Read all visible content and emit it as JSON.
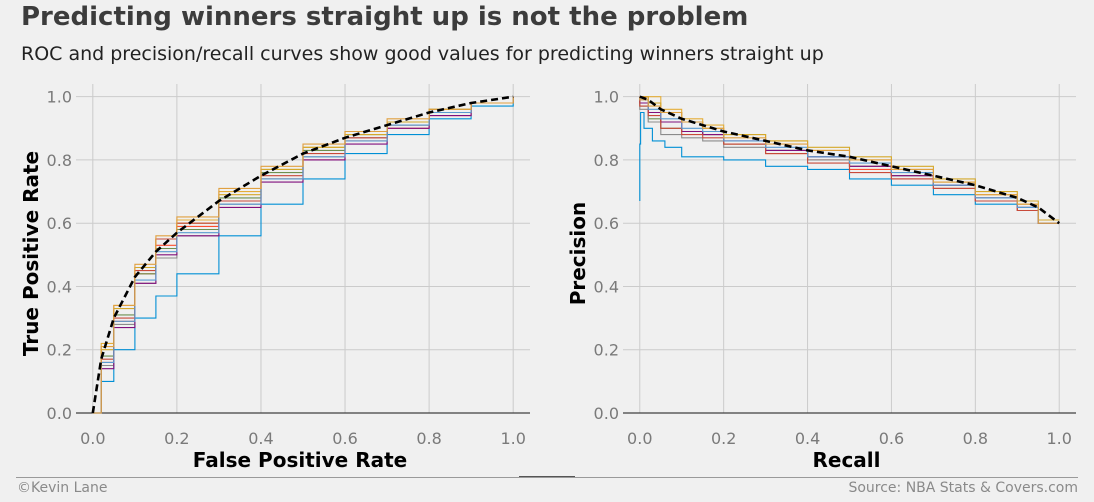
{
  "header": {
    "title": "Predicting winners straight up is not the problem",
    "subtitle": "ROC and precision/recall curves show good values for predicting winners straight up"
  },
  "footer": {
    "credit": "©Kevin Lane",
    "source": "Source: NBA Stats & Covers.com"
  },
  "style": {
    "background": "#f0f0f0",
    "grid_color": "#cbcbcb",
    "mean_curve_color": "#000000",
    "series_colors": [
      "#008fd5",
      "#fc4f30",
      "#e5ae38",
      "#6d904f",
      "#8b8b8b",
      "#810f7c",
      "#d4a82a",
      "#c84a3a",
      "#5a9ad0",
      "#e0a040"
    ]
  },
  "chart_data": [
    {
      "type": "line",
      "name": "roc",
      "xlabel": "False Positive Rate",
      "ylabel": "True Positive Rate",
      "xlim": [
        -0.04,
        1.04
      ],
      "ylim": [
        0.0,
        1.04
      ],
      "xticks": [
        "0.0",
        "0.2",
        "0.4",
        "0.6",
        "0.8",
        "1.0"
      ],
      "yticks": [
        "0.0",
        "0.2",
        "0.4",
        "0.6",
        "0.8",
        "1.0"
      ],
      "grid": true,
      "mean": {
        "style": "dashed",
        "x": [
          0,
          0.02,
          0.05,
          0.1,
          0.15,
          0.2,
          0.3,
          0.4,
          0.5,
          0.6,
          0.7,
          0.8,
          0.9,
          1.0
        ],
        "y": [
          0,
          0.17,
          0.3,
          0.43,
          0.51,
          0.57,
          0.67,
          0.75,
          0.82,
          0.87,
          0.91,
          0.95,
          0.98,
          1.0
        ]
      },
      "series": [
        {
          "x": [
            0,
            0.02,
            0.05,
            0.1,
            0.15,
            0.2,
            0.3,
            0.4,
            0.5,
            0.6,
            0.7,
            0.8,
            0.9,
            1.0
          ],
          "y": [
            0,
            0.1,
            0.2,
            0.3,
            0.37,
            0.44,
            0.56,
            0.66,
            0.74,
            0.82,
            0.88,
            0.93,
            0.97,
            1.0
          ]
        },
        {
          "x": [
            0,
            0.02,
            0.05,
            0.1,
            0.15,
            0.2,
            0.3,
            0.4,
            0.5,
            0.6,
            0.7,
            0.8,
            0.9,
            1.0
          ],
          "y": [
            0,
            0.16,
            0.29,
            0.44,
            0.53,
            0.59,
            0.67,
            0.74,
            0.8,
            0.86,
            0.9,
            0.94,
            0.98,
            1.0
          ]
        },
        {
          "x": [
            0,
            0.02,
            0.05,
            0.1,
            0.15,
            0.2,
            0.3,
            0.4,
            0.5,
            0.6,
            0.7,
            0.8,
            0.9,
            1.0
          ],
          "y": [
            0,
            0.22,
            0.34,
            0.46,
            0.55,
            0.61,
            0.7,
            0.77,
            0.84,
            0.89,
            0.92,
            0.95,
            0.98,
            1.0
          ]
        },
        {
          "x": [
            0,
            0.02,
            0.05,
            0.1,
            0.15,
            0.2,
            0.3,
            0.4,
            0.5,
            0.6,
            0.7,
            0.8,
            0.9,
            1.0
          ],
          "y": [
            0,
            0.18,
            0.31,
            0.44,
            0.52,
            0.58,
            0.68,
            0.76,
            0.83,
            0.88,
            0.92,
            0.96,
            0.98,
            1.0
          ]
        },
        {
          "x": [
            0,
            0.02,
            0.05,
            0.1,
            0.15,
            0.2,
            0.3,
            0.4,
            0.5,
            0.6,
            0.7,
            0.8,
            0.9,
            1.0
          ],
          "y": [
            0,
            0.15,
            0.28,
            0.41,
            0.49,
            0.56,
            0.66,
            0.74,
            0.81,
            0.87,
            0.91,
            0.95,
            0.98,
            1.0
          ]
        },
        {
          "x": [
            0,
            0.02,
            0.05,
            0.1,
            0.15,
            0.2,
            0.3,
            0.4,
            0.5,
            0.6,
            0.7,
            0.8,
            0.9,
            1.0
          ],
          "y": [
            0,
            0.14,
            0.27,
            0.41,
            0.5,
            0.56,
            0.65,
            0.73,
            0.8,
            0.85,
            0.9,
            0.94,
            0.98,
            1.0
          ]
        },
        {
          "x": [
            0,
            0.02,
            0.05,
            0.1,
            0.15,
            0.2,
            0.3,
            0.4,
            0.5,
            0.6,
            0.7,
            0.8,
            0.9,
            1.0
          ],
          "y": [
            0,
            0.2,
            0.33,
            0.46,
            0.55,
            0.6,
            0.69,
            0.77,
            0.84,
            0.88,
            0.92,
            0.96,
            0.98,
            1.0
          ]
        },
        {
          "x": [
            0,
            0.02,
            0.05,
            0.1,
            0.15,
            0.2,
            0.3,
            0.4,
            0.5,
            0.6,
            0.7,
            0.8,
            0.9,
            1.0
          ],
          "y": [
            0,
            0.17,
            0.3,
            0.45,
            0.55,
            0.6,
            0.67,
            0.75,
            0.82,
            0.87,
            0.91,
            0.95,
            0.98,
            1.0
          ]
        },
        {
          "x": [
            0,
            0.02,
            0.05,
            0.1,
            0.15,
            0.2,
            0.3,
            0.4,
            0.5,
            0.6,
            0.7,
            0.8,
            0.9,
            1.0
          ],
          "y": [
            0,
            0.16,
            0.29,
            0.42,
            0.51,
            0.57,
            0.66,
            0.74,
            0.81,
            0.86,
            0.91,
            0.95,
            0.98,
            1.0
          ]
        },
        {
          "x": [
            0,
            0.02,
            0.05,
            0.1,
            0.15,
            0.2,
            0.3,
            0.4,
            0.5,
            0.6,
            0.7,
            0.8,
            0.9,
            1.0
          ],
          "y": [
            0,
            0.21,
            0.34,
            0.47,
            0.56,
            0.62,
            0.71,
            0.78,
            0.85,
            0.89,
            0.93,
            0.96,
            0.98,
            1.0
          ]
        }
      ]
    },
    {
      "type": "line",
      "name": "precision_recall",
      "xlabel": "Recall",
      "ylabel": "Precision",
      "xlim": [
        -0.04,
        1.04
      ],
      "ylim": [
        0.0,
        1.04
      ],
      "xticks": [
        "0.0",
        "0.2",
        "0.4",
        "0.6",
        "0.8",
        "1.0"
      ],
      "yticks": [
        "0.0",
        "0.2",
        "0.4",
        "0.6",
        "0.8",
        "1.0"
      ],
      "grid": true,
      "mean": {
        "style": "dashed",
        "x": [
          0,
          0.02,
          0.05,
          0.1,
          0.2,
          0.3,
          0.4,
          0.5,
          0.6,
          0.7,
          0.8,
          0.9,
          0.95,
          1.0
        ],
        "y": [
          1.0,
          0.99,
          0.96,
          0.93,
          0.89,
          0.86,
          0.83,
          0.81,
          0.78,
          0.75,
          0.72,
          0.68,
          0.65,
          0.6
        ]
      },
      "series": [
        {
          "x": [
            0,
            0.002,
            0.01,
            0.03,
            0.06,
            0.1,
            0.2,
            0.3,
            0.4,
            0.5,
            0.6,
            0.7,
            0.8,
            0.9,
            0.95,
            1.0
          ],
          "y": [
            0.67,
            0.85,
            0.95,
            0.9,
            0.86,
            0.84,
            0.81,
            0.8,
            0.78,
            0.77,
            0.74,
            0.72,
            0.69,
            0.66,
            0.64,
            0.6
          ]
        },
        {
          "x": [
            0,
            0.02,
            0.05,
            0.1,
            0.15,
            0.2,
            0.3,
            0.4,
            0.5,
            0.6,
            0.7,
            0.8,
            0.9,
            0.95,
            1.0
          ],
          "y": [
            1.0,
            1.0,
            0.95,
            0.92,
            0.89,
            0.88,
            0.85,
            0.82,
            0.8,
            0.77,
            0.74,
            0.71,
            0.67,
            0.64,
            0.6
          ]
        },
        {
          "x": [
            0,
            0.02,
            0.05,
            0.1,
            0.15,
            0.2,
            0.3,
            0.4,
            0.5,
            0.6,
            0.7,
            0.8,
            0.9,
            0.95,
            1.0
          ],
          "y": [
            1.0,
            0.98,
            1.0,
            0.96,
            0.93,
            0.91,
            0.88,
            0.86,
            0.83,
            0.8,
            0.77,
            0.73,
            0.69,
            0.66,
            0.61
          ]
        },
        {
          "x": [
            0,
            0.02,
            0.05,
            0.1,
            0.15,
            0.2,
            0.3,
            0.4,
            0.5,
            0.6,
            0.7,
            0.8,
            0.9,
            0.95,
            1.0
          ],
          "y": [
            1.0,
            0.97,
            0.93,
            0.9,
            0.89,
            0.88,
            0.85,
            0.83,
            0.81,
            0.78,
            0.75,
            0.72,
            0.68,
            0.65,
            0.6
          ]
        },
        {
          "x": [
            0,
            0.02,
            0.05,
            0.1,
            0.15,
            0.2,
            0.3,
            0.4,
            0.5,
            0.6,
            0.7,
            0.8,
            0.9,
            0.95,
            1.0
          ],
          "y": [
            1.0,
            0.96,
            0.92,
            0.88,
            0.87,
            0.86,
            0.84,
            0.83,
            0.8,
            0.78,
            0.75,
            0.71,
            0.68,
            0.65,
            0.6
          ]
        },
        {
          "x": [
            0,
            0.02,
            0.05,
            0.1,
            0.15,
            0.2,
            0.3,
            0.4,
            0.5,
            0.6,
            0.7,
            0.8,
            0.9,
            0.95,
            1.0
          ],
          "y": [
            1.0,
            0.98,
            0.95,
            0.92,
            0.89,
            0.88,
            0.86,
            0.83,
            0.81,
            0.78,
            0.75,
            0.72,
            0.68,
            0.65,
            0.6
          ]
        },
        {
          "x": [
            0,
            0.02,
            0.05,
            0.1,
            0.15,
            0.2,
            0.3,
            0.4,
            0.5,
            0.6,
            0.7,
            0.8,
            0.9,
            0.95,
            1.0
          ],
          "y": [
            1.0,
            1.0,
            0.98,
            0.95,
            0.92,
            0.9,
            0.88,
            0.86,
            0.84,
            0.81,
            0.78,
            0.74,
            0.7,
            0.67,
            0.61
          ]
        },
        {
          "x": [
            0,
            0.02,
            0.05,
            0.1,
            0.15,
            0.2,
            0.3,
            0.4,
            0.5,
            0.6,
            0.7,
            0.8,
            0.9,
            0.95,
            1.0
          ],
          "y": [
            1.0,
            0.97,
            0.94,
            0.9,
            0.88,
            0.87,
            0.85,
            0.82,
            0.79,
            0.76,
            0.74,
            0.71,
            0.67,
            0.64,
            0.6
          ]
        },
        {
          "x": [
            0,
            0.02,
            0.05,
            0.1,
            0.15,
            0.2,
            0.3,
            0.4,
            0.5,
            0.6,
            0.7,
            0.8,
            0.9,
            0.95,
            1.0
          ],
          "y": [
            1.0,
            0.99,
            0.96,
            0.93,
            0.9,
            0.89,
            0.86,
            0.84,
            0.81,
            0.79,
            0.76,
            0.72,
            0.68,
            0.65,
            0.6
          ]
        },
        {
          "x": [
            0,
            0.02,
            0.05,
            0.1,
            0.15,
            0.2,
            0.3,
            0.4,
            0.5,
            0.6,
            0.7,
            0.8,
            0.9,
            0.95,
            1.0
          ],
          "y": [
            1.0,
            0.99,
            0.97,
            0.95,
            0.92,
            0.9,
            0.87,
            0.85,
            0.83,
            0.8,
            0.77,
            0.73,
            0.69,
            0.66,
            0.6
          ]
        }
      ]
    }
  ]
}
